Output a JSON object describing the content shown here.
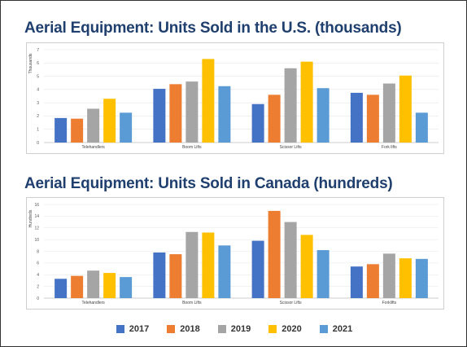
{
  "legend": [
    "2017",
    "2018",
    "2019",
    "2020",
    "2021"
  ],
  "colors": [
    "#4472c4",
    "#ed7d31",
    "#a5a5a5",
    "#ffc000",
    "#5b9bd5"
  ],
  "chart_data": [
    {
      "type": "bar",
      "title": "Aerial Equipment: Units Sold in the U.S. (thousands)",
      "ylabel": "Thousands",
      "categories": [
        "Telehandlers",
        "Boom Lifts",
        "Scissor Lifts",
        "Fork lifts"
      ],
      "ylim": [
        0,
        7
      ],
      "yticks": [
        0,
        1,
        2,
        3,
        4,
        5,
        6,
        7
      ],
      "grid": true,
      "series": [
        {
          "name": "2017",
          "values": [
            1.85,
            4.05,
            2.9,
            3.75
          ]
        },
        {
          "name": "2018",
          "values": [
            1.8,
            4.4,
            3.6,
            3.6
          ]
        },
        {
          "name": "2019",
          "values": [
            2.55,
            4.6,
            5.6,
            4.45
          ]
        },
        {
          "name": "2020",
          "values": [
            3.3,
            6.3,
            6.1,
            5.05
          ]
        },
        {
          "name": "2021",
          "values": [
            2.25,
            4.25,
            4.1,
            2.25
          ]
        }
      ]
    },
    {
      "type": "bar",
      "title": "Aerial Equipment: Units Sold in Canada (hundreds)",
      "ylabel": "Hundreds",
      "categories": [
        "Telehandlers",
        "Boom Lifts",
        "Scissor Lifts",
        "Forklifts"
      ],
      "ylim": [
        0,
        16
      ],
      "yticks": [
        0,
        2,
        4,
        6,
        8,
        10,
        12,
        14,
        16
      ],
      "grid": true,
      "series": [
        {
          "name": "2017",
          "values": [
            3.3,
            7.8,
            9.8,
            5.4
          ]
        },
        {
          "name": "2018",
          "values": [
            3.8,
            7.5,
            14.9,
            5.8
          ]
        },
        {
          "name": "2019",
          "values": [
            4.7,
            11.3,
            13.0,
            7.6
          ]
        },
        {
          "name": "2020",
          "values": [
            4.3,
            11.2,
            10.8,
            6.8
          ]
        },
        {
          "name": "2021",
          "values": [
            3.6,
            9.0,
            8.2,
            6.7
          ]
        }
      ]
    }
  ]
}
